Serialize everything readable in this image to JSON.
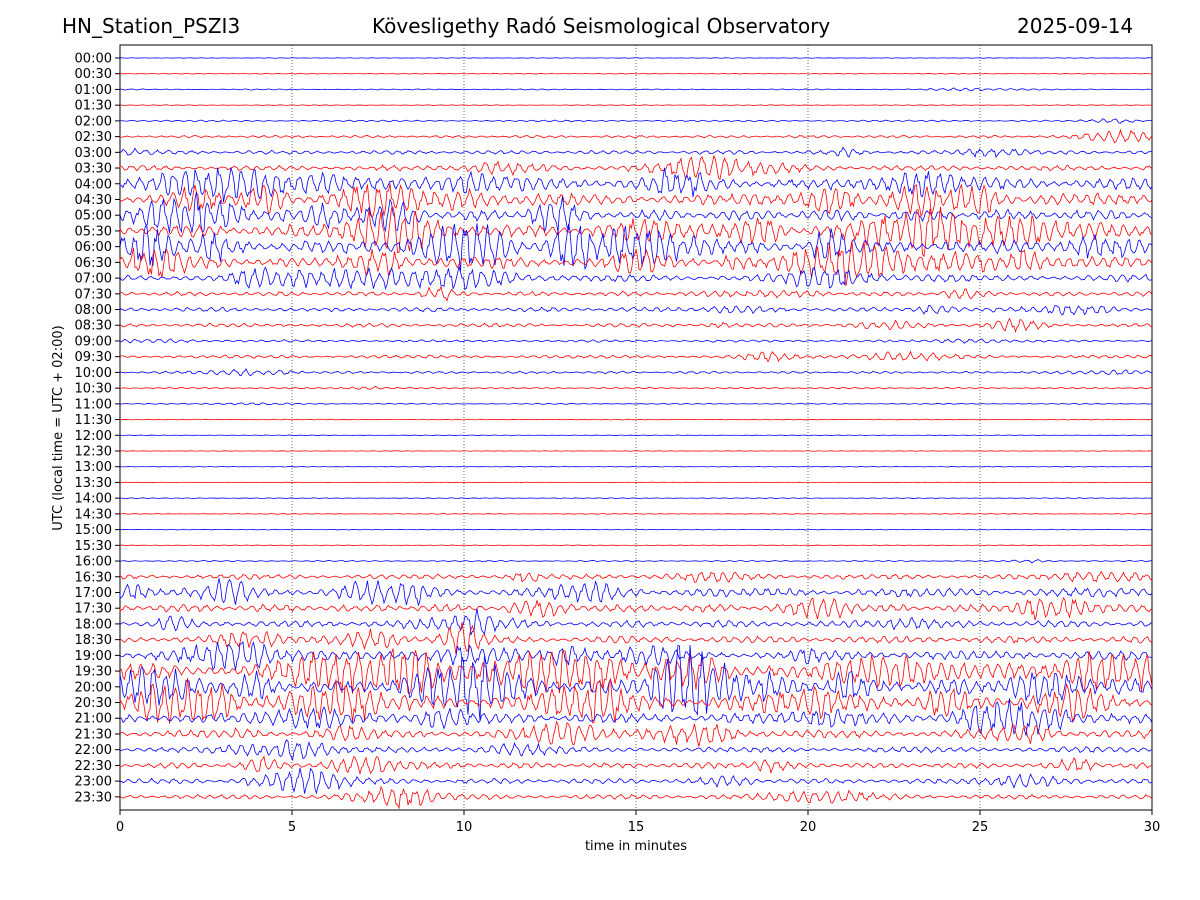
{
  "header": {
    "station": "HN_Station_PSZI3",
    "title": "Kövesligethy Radó Seismological Observatory",
    "date": "2025-09-14"
  },
  "chart_data": {
    "type": "line",
    "title": "Kövesligethy Radó Seismological Observatory",
    "xlabel": "time in minutes",
    "ylabel": "UTC (local time = UTC + 02:00)",
    "xlim": [
      0,
      30
    ],
    "x_ticks": [
      "0",
      "5",
      "10",
      "15",
      "20",
      "25",
      "30"
    ],
    "x_tick_values": [
      0,
      5,
      10,
      15,
      20,
      25,
      30
    ],
    "vertical_grid": true,
    "colors": [
      "#0000ff",
      "#ff0000"
    ],
    "rows": [
      {
        "label": "00:00",
        "amplitude": 0.3
      },
      {
        "label": "00:30",
        "amplitude": 0.4
      },
      {
        "label": "01:00",
        "amplitude": 0.6
      },
      {
        "label": "01:30",
        "amplitude": 0.4
      },
      {
        "label": "02:00",
        "amplitude": 0.9
      },
      {
        "label": "02:30",
        "amplitude": 1.4
      },
      {
        "label": "03:00",
        "amplitude": 2.2
      },
      {
        "label": "03:30",
        "amplitude": 3.0
      },
      {
        "label": "04:00",
        "amplitude": 6.5
      },
      {
        "label": "04:30",
        "amplitude": 6.5
      },
      {
        "label": "05:00",
        "amplitude": 6.0
      },
      {
        "label": "05:30",
        "amplitude": 7.0
      },
      {
        "label": "06:00",
        "amplitude": 7.5
      },
      {
        "label": "06:30",
        "amplitude": 6.5
      },
      {
        "label": "07:00",
        "amplitude": 4.0
      },
      {
        "label": "07:30",
        "amplitude": 2.6
      },
      {
        "label": "08:00",
        "amplitude": 2.5
      },
      {
        "label": "08:30",
        "amplitude": 2.2
      },
      {
        "label": "09:00",
        "amplitude": 1.3
      },
      {
        "label": "09:30",
        "amplitude": 1.8
      },
      {
        "label": "10:00",
        "amplitude": 1.3
      },
      {
        "label": "10:30",
        "amplitude": 0.8
      },
      {
        "label": "11:00",
        "amplitude": 0.5
      },
      {
        "label": "11:30",
        "amplitude": 0.4
      },
      {
        "label": "12:00",
        "amplitude": 0.3
      },
      {
        "label": "12:30",
        "amplitude": 0.3
      },
      {
        "label": "13:00",
        "amplitude": 0.3
      },
      {
        "label": "13:30",
        "amplitude": 0.3
      },
      {
        "label": "14:00",
        "amplitude": 0.4
      },
      {
        "label": "14:30",
        "amplitude": 0.4
      },
      {
        "label": "15:00",
        "amplitude": 0.4
      },
      {
        "label": "15:30",
        "amplitude": 0.4
      },
      {
        "label": "16:00",
        "amplitude": 0.7
      },
      {
        "label": "16:30",
        "amplitude": 2.8
      },
      {
        "label": "17:00",
        "amplitude": 5.0
      },
      {
        "label": "17:30",
        "amplitude": 4.2
      },
      {
        "label": "18:00",
        "amplitude": 3.8
      },
      {
        "label": "18:30",
        "amplitude": 3.8
      },
      {
        "label": "19:00",
        "amplitude": 5.0
      },
      {
        "label": "19:30",
        "amplitude": 8.5
      },
      {
        "label": "20:00",
        "amplitude": 8.5
      },
      {
        "label": "20:30",
        "amplitude": 8.0
      },
      {
        "label": "21:00",
        "amplitude": 5.5
      },
      {
        "label": "21:30",
        "amplitude": 4.5
      },
      {
        "label": "22:00",
        "amplitude": 3.2
      },
      {
        "label": "22:30",
        "amplitude": 3.2
      },
      {
        "label": "23:00",
        "amplitude": 3.0
      },
      {
        "label": "23:30",
        "amplitude": 2.6
      }
    ]
  }
}
